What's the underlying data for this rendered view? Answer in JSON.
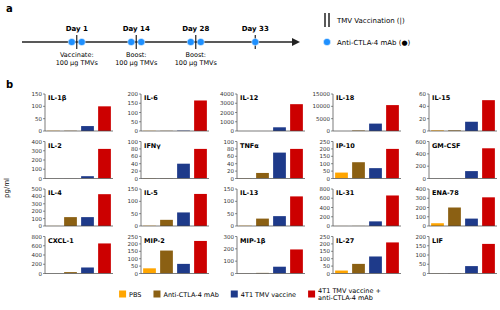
{
  "chart_data": [
    {
      "type": "timeline",
      "title": "a",
      "categories": [
        "Day 1",
        "Day 14",
        "Day 28",
        "Day 33"
      ],
      "values": [
        2,
        2,
        2,
        1
      ],
      "annotations": [
        "Vaccinate:\n100 µg TMVs",
        "Boost:\n100 µg TMVs",
        "Boost:\n100 µg TMVs"
      ],
      "series": [
        {
          "name": "TMV Vaccination (|)",
          "marker": "line"
        },
        {
          "name": "Anti-CTLA-4 mAb (●)",
          "marker": "circle",
          "color": "#1E90FF"
        }
      ],
      "legend": "right"
    },
    {
      "type": "bar",
      "title": "IL-1β",
      "ylabel": "pg/ml",
      "annotations": [
        "b"
      ],
      "legend": "bottom",
      "tick_labels": "y",
      "categories": [
        null
      ],
      "series": [
        {
          "name": "PBS",
          "color": "#FFA500",
          "values": [
            1
          ]
        },
        {
          "name": "Anti-CTLA-4 mAb",
          "color": "#8B6013",
          "values": [
            1
          ]
        },
        {
          "name": "4T1 TMV vaccine",
          "color": "#1E3A8A",
          "values": [
            20
          ]
        },
        {
          "name": "4T1 TMV vaccine +\nanti-CTLA-4 mAb",
          "color": "#CC0000",
          "values": [
            100
          ]
        }
      ],
      "ylim": [
        0,
        150
      ],
      "yticks": [
        0,
        50,
        100,
        150
      ]
    },
    {
      "type": "bar",
      "title": "IL-6",
      "tick_labels": "y",
      "categories": [
        null
      ],
      "series": [
        {
          "color": "#FFA500",
          "values": [
            1
          ]
        },
        {
          "color": "#8B6013",
          "values": [
            1
          ]
        },
        {
          "color": "#1E3A8A",
          "values": [
            2
          ]
        },
        {
          "color": "#CC0000",
          "values": [
            165
          ]
        }
      ],
      "ylim": [
        0,
        200
      ],
      "yticks": [
        0,
        50,
        100,
        150,
        200
      ]
    },
    {
      "type": "bar",
      "title": "IL-12",
      "tick_labels": "y",
      "categories": [
        null
      ],
      "series": [
        {
          "color": "#FFA500",
          "values": [
            1
          ]
        },
        {
          "color": "#8B6013",
          "values": [
            1
          ]
        },
        {
          "color": "#1E3A8A",
          "values": [
            400
          ]
        },
        {
          "color": "#CC0000",
          "values": [
            2900
          ]
        }
      ],
      "ylim": [
        0,
        4000
      ],
      "yticks": [
        0,
        1000,
        2000,
        3000,
        4000
      ]
    },
    {
      "type": "bar",
      "title": "IL-18",
      "tick_labels": "y",
      "categories": [
        null
      ],
      "series": [
        {
          "color": "#FFA500",
          "values": [
            1
          ]
        },
        {
          "color": "#8B6013",
          "values": [
            200
          ]
        },
        {
          "color": "#1E3A8A",
          "values": [
            3000
          ]
        },
        {
          "color": "#CC0000",
          "values": [
            10500
          ]
        }
      ],
      "ylim": [
        0,
        15000
      ],
      "yticks": [
        0,
        5000,
        10000,
        15000
      ]
    },
    {
      "type": "bar",
      "title": "IL-15",
      "tick_labels": "y",
      "categories": [
        null
      ],
      "series": [
        {
          "color": "#FFA500",
          "values": [
            1
          ]
        },
        {
          "color": "#8B6013",
          "values": [
            1
          ]
        },
        {
          "color": "#1E3A8A",
          "values": [
            15
          ]
        },
        {
          "color": "#CC0000",
          "values": [
            50
          ]
        }
      ],
      "ylim": [
        0,
        60
      ],
      "yticks": [
        0,
        20,
        40,
        60
      ]
    },
    {
      "type": "bar",
      "title": "IL-2",
      "tick_labels": "y",
      "categories": [
        null
      ],
      "series": [
        {
          "color": "#FFA500",
          "values": [
            1
          ]
        },
        {
          "color": "#8B6013",
          "values": [
            1
          ]
        },
        {
          "color": "#1E3A8A",
          "values": [
            25
          ]
        },
        {
          "color": "#CC0000",
          "values": [
            320
          ]
        }
      ],
      "ylim": [
        0,
        400
      ],
      "yticks": [
        0,
        100,
        200,
        300,
        400
      ]
    },
    {
      "type": "bar",
      "title": "IFNγ",
      "tick_labels": "y",
      "categories": [
        null
      ],
      "series": [
        {
          "color": "#FFA500",
          "values": [
            1
          ]
        },
        {
          "color": "#8B6013",
          "values": [
            1
          ]
        },
        {
          "color": "#1E3A8A",
          "values": [
            40
          ]
        },
        {
          "color": "#CC0000",
          "values": [
            80
          ]
        }
      ],
      "ylim": [
        0,
        100
      ],
      "yticks": [
        0,
        20,
        40,
        60,
        80,
        100
      ]
    },
    {
      "type": "bar",
      "title": "TNFα",
      "tick_labels": "y",
      "categories": [
        null
      ],
      "series": [
        {
          "color": "#FFA500",
          "values": [
            1
          ]
        },
        {
          "color": "#8B6013",
          "values": [
            15
          ]
        },
        {
          "color": "#1E3A8A",
          "values": [
            70
          ]
        },
        {
          "color": "#CC0000",
          "values": [
            80
          ]
        }
      ],
      "ylim": [
        0,
        100
      ],
      "yticks": [
        0,
        20,
        40,
        60,
        80,
        100
      ]
    },
    {
      "type": "bar",
      "title": "IP-10",
      "tick_labels": "y",
      "categories": [
        null
      ],
      "series": [
        {
          "color": "#FFA500",
          "values": [
            40
          ]
        },
        {
          "color": "#8B6013",
          "values": [
            110
          ]
        },
        {
          "color": "#1E3A8A",
          "values": [
            70
          ]
        },
        {
          "color": "#CC0000",
          "values": [
            200
          ]
        }
      ],
      "ylim": [
        0,
        250
      ],
      "yticks": [
        0,
        50,
        100,
        150,
        200,
        250
      ]
    },
    {
      "type": "bar",
      "title": "GM-CSF",
      "tick_labels": "y",
      "categories": [
        null
      ],
      "series": [
        {
          "color": "#FFA500",
          "values": [
            1
          ]
        },
        {
          "color": "#8B6013",
          "values": [
            2
          ]
        },
        {
          "color": "#1E3A8A",
          "values": [
            120
          ]
        },
        {
          "color": "#CC0000",
          "values": [
            490
          ]
        }
      ],
      "ylim": [
        0,
        600
      ],
      "yticks": [
        0,
        200,
        400,
        600
      ]
    },
    {
      "type": "bar",
      "title": "IL-4",
      "tick_labels": "y",
      "categories": [
        null
      ],
      "series": [
        {
          "color": "#FFA500",
          "values": [
            1
          ]
        },
        {
          "color": "#8B6013",
          "values": [
            120
          ]
        },
        {
          "color": "#1E3A8A",
          "values": [
            120
          ]
        },
        {
          "color": "#CC0000",
          "values": [
            430
          ]
        }
      ],
      "ylim": [
        0,
        500
      ],
      "yticks": [
        0,
        100,
        200,
        300,
        400,
        500
      ]
    },
    {
      "type": "bar",
      "title": "IL-5",
      "tick_labels": "y",
      "categories": [
        null
      ],
      "series": [
        {
          "color": "#FFA500",
          "values": [
            1
          ]
        },
        {
          "color": "#8B6013",
          "values": [
            25
          ]
        },
        {
          "color": "#1E3A8A",
          "values": [
            55
          ]
        },
        {
          "color": "#CC0000",
          "values": [
            130
          ]
        }
      ],
      "ylim": [
        0,
        150
      ],
      "yticks": [
        0,
        50,
        100,
        150
      ]
    },
    {
      "type": "bar",
      "title": "IL-13",
      "tick_labels": "y",
      "categories": [
        null
      ],
      "series": [
        {
          "color": "#FFA500",
          "values": [
            1
          ]
        },
        {
          "color": "#8B6013",
          "values": [
            30
          ]
        },
        {
          "color": "#1E3A8A",
          "values": [
            40
          ]
        },
        {
          "color": "#CC0000",
          "values": [
            120
          ]
        }
      ],
      "ylim": [
        0,
        150
      ],
      "yticks": [
        0,
        50,
        100,
        150
      ]
    },
    {
      "type": "bar",
      "title": "IL-31",
      "tick_labels": "y",
      "categories": [
        null
      ],
      "series": [
        {
          "color": "#FFA500",
          "values": [
            1
          ]
        },
        {
          "color": "#8B6013",
          "values": [
            2
          ]
        },
        {
          "color": "#1E3A8A",
          "values": [
            100
          ]
        },
        {
          "color": "#CC0000",
          "values": [
            660
          ]
        }
      ],
      "ylim": [
        0,
        800
      ],
      "yticks": [
        0,
        200,
        400,
        600,
        800
      ]
    },
    {
      "type": "bar",
      "title": "ENA-78",
      "tick_labels": "y",
      "categories": [
        null
      ],
      "series": [
        {
          "color": "#FFA500",
          "values": [
            30
          ]
        },
        {
          "color": "#8B6013",
          "values": [
            200
          ]
        },
        {
          "color": "#1E3A8A",
          "values": [
            80
          ]
        },
        {
          "color": "#CC0000",
          "values": [
            310
          ]
        }
      ],
      "ylim": [
        0,
        400
      ],
      "yticks": [
        0,
        100,
        200,
        300,
        400
      ]
    },
    {
      "type": "bar",
      "title": "CXCL-1",
      "tick_labels": "y",
      "categories": [
        null
      ],
      "series": [
        {
          "color": "#FFA500",
          "values": [
            1
          ]
        },
        {
          "color": "#8B6013",
          "values": [
            30
          ]
        },
        {
          "color": "#1E3A8A",
          "values": [
            130
          ]
        },
        {
          "color": "#CC0000",
          "values": [
            650
          ]
        }
      ],
      "ylim": [
        0,
        800
      ],
      "yticks": [
        0,
        200,
        400,
        600,
        800
      ]
    },
    {
      "type": "bar",
      "title": "MIP-2",
      "tick_labels": "y",
      "categories": [
        null
      ],
      "series": [
        {
          "color": "#FFA500",
          "values": [
            35
          ]
        },
        {
          "color": "#8B6013",
          "values": [
            155
          ]
        },
        {
          "color": "#1E3A8A",
          "values": [
            65
          ]
        },
        {
          "color": "#CC0000",
          "values": [
            220
          ]
        }
      ],
      "ylim": [
        0,
        250
      ],
      "yticks": [
        0,
        50,
        100,
        150,
        200,
        250
      ]
    },
    {
      "type": "bar",
      "title": "MIP-1β",
      "tick_labels": "y",
      "categories": [
        null
      ],
      "series": [
        {
          "color": "#FFA500",
          "values": [
            1
          ]
        },
        {
          "color": "#8B6013",
          "values": [
            5
          ]
        },
        {
          "color": "#1E3A8A",
          "values": [
            55
          ]
        },
        {
          "color": "#CC0000",
          "values": [
            195
          ]
        }
      ],
      "ylim": [
        0,
        300
      ],
      "yticks": [
        0,
        100,
        200,
        300
      ]
    },
    {
      "type": "bar",
      "title": "IL-27",
      "tick_labels": "y",
      "categories": [
        null
      ],
      "series": [
        {
          "color": "#FFA500",
          "values": [
            20
          ]
        },
        {
          "color": "#8B6013",
          "values": [
            65
          ]
        },
        {
          "color": "#1E3A8A",
          "values": [
            115
          ]
        },
        {
          "color": "#CC0000",
          "values": [
            210
          ]
        }
      ],
      "ylim": [
        0,
        250
      ],
      "yticks": [
        0,
        50,
        100,
        150,
        200,
        250
      ]
    },
    {
      "type": "bar",
      "title": "LIF",
      "tick_labels": "y",
      "categories": [
        null
      ],
      "series": [
        {
          "color": "#FFA500",
          "values": [
            1
          ]
        },
        {
          "color": "#8B6013",
          "values": [
            2
          ]
        },
        {
          "color": "#1E3A8A",
          "values": [
            40
          ]
        },
        {
          "color": "#CC0000",
          "values": [
            160
          ]
        }
      ],
      "ylim": [
        0,
        200
      ],
      "yticks": [
        0,
        50,
        100,
        150,
        200
      ]
    }
  ]
}
